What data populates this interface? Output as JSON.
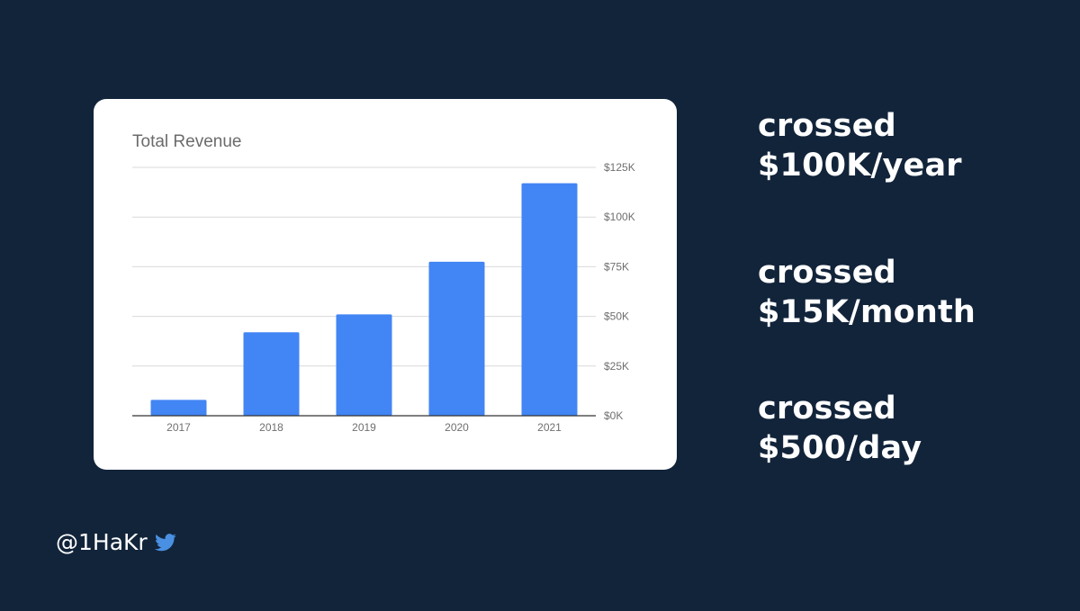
{
  "chart_data": {
    "type": "bar",
    "title": "Total Revenue",
    "categories": [
      "2017",
      "2018",
      "2019",
      "2020",
      "2021"
    ],
    "values": [
      8000,
      42000,
      51000,
      77500,
      117000
    ],
    "ylim": [
      0,
      125000
    ],
    "yticks": [
      0,
      25000,
      50000,
      75000,
      100000,
      125000
    ],
    "ytick_labels": [
      "$0K",
      "$25K",
      "$50K",
      "$75K",
      "$100K",
      "$125K"
    ],
    "y_axis_side": "right",
    "grid": true,
    "legend": "none",
    "bar_color": "#4285f4"
  },
  "milestones": [
    {
      "line1": "crossed",
      "line2": "$100K/year"
    },
    {
      "line1": "crossed",
      "line2": "$15K/month"
    },
    {
      "line1": "crossed",
      "line2": "$500/day"
    }
  ],
  "footer": {
    "handle": "@1HaKr",
    "icon": "twitter-bird-icon",
    "icon_color": "#4a90e2"
  },
  "colors": {
    "background": "#12243a",
    "card": "#ffffff",
    "text_primary": "#ffffff"
  }
}
